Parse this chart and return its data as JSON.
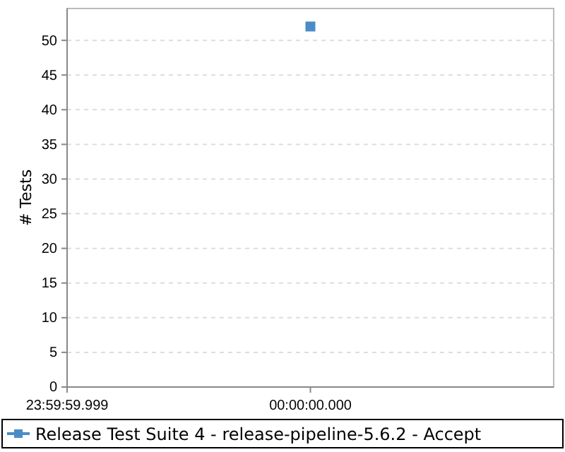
{
  "chart_data": {
    "type": "line",
    "ylabel": "# Tests",
    "categories": [
      "23:59:59.999",
      "00:00:00.000",
      null
    ],
    "series": [
      {
        "name": "Release Test Suite 4 - release-pipeline-5.6.2 - Accept",
        "color": "#4a8cc6",
        "values": [
          null,
          52,
          null
        ]
      }
    ],
    "ylim": [
      0,
      54.6
    ],
    "yticks": [
      0,
      5,
      10,
      15,
      20,
      25,
      30,
      35,
      40,
      45,
      50
    ],
    "grid": "y",
    "legend": "bottom",
    "marker": "square"
  }
}
